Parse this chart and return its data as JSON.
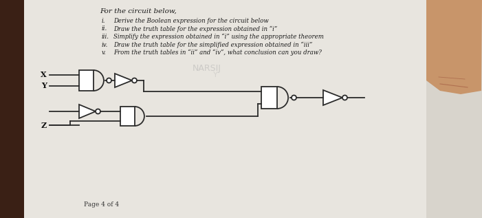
{
  "bg_color": "#d8d4cc",
  "page_color": "#e8e5df",
  "wood_color": "#3a2015",
  "title": "For the circuit below,",
  "items": [
    [
      "i.",
      "Derive the Boolean expression for the circuit below"
    ],
    [
      "ii.",
      "Draw the truth table for the expression obtained in “i”"
    ],
    [
      "iii.",
      "Simplify the expression obtained in “i” using the appropriate theorem"
    ],
    [
      "iv.",
      "Draw the truth table for the simplified expression obtained in “iii”"
    ],
    [
      "v.",
      "From the truth tables in “ii” and “iv”, what conclusion can you draw?"
    ]
  ],
  "footer": "Page 4 of 4",
  "watermark": "NARSIJ",
  "line_color": "#2a2a2a",
  "finger_color": "#c8956a"
}
